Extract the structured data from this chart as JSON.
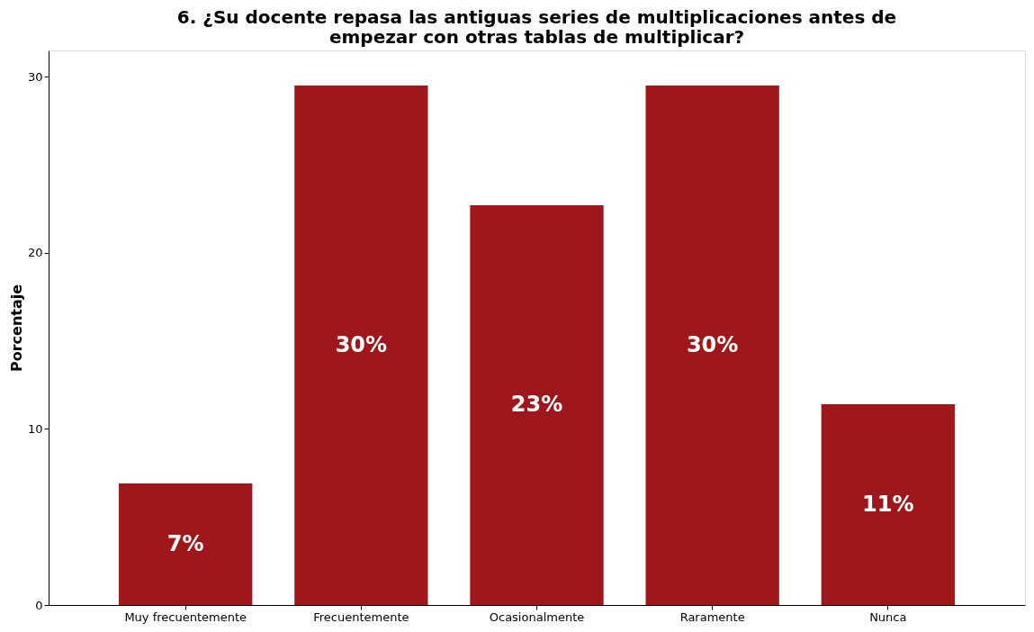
{
  "chart_data": {
    "type": "bar",
    "title": "6. ¿Su docente repasa las antiguas series de multiplicaciones antes de empezar con otras tablas de multiplicar?",
    "ylabel": "Porcentaje",
    "categories": [
      "Muy frecuentemente",
      "Frecuentemente",
      "Ocasionalmente",
      "Raramente",
      "Nunca"
    ],
    "values": [
      6.9,
      29.5,
      22.7,
      29.5,
      11.4
    ],
    "value_labels": [
      "7%",
      "30%",
      "23%",
      "30%",
      "11%"
    ],
    "color": "#a0171b",
    "ylim": [
      0,
      31.5
    ],
    "yticks": [
      0,
      10,
      20,
      30
    ],
    "grid": false
  }
}
